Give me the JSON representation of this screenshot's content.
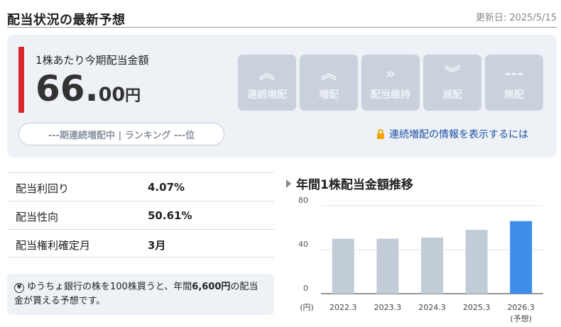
{
  "header": {
    "title": "配当状況の最新予想",
    "updated": "更新日: 2025/5/15"
  },
  "dividend": {
    "label": "1株あたり今期配当金額",
    "integer": "66.",
    "decimal": "00",
    "unit": "円",
    "rank_text": "---期連続増配中 | ランキング ---位"
  },
  "statuses": [
    {
      "label": "連続増配",
      "icon": "double-chevron-up-icon",
      "active": true
    },
    {
      "label": "増配",
      "icon": "double-chevron-up-icon",
      "active": false
    },
    {
      "label": "配当維持",
      "icon": "double-chevron-right-icon",
      "active": false
    },
    {
      "label": "減配",
      "icon": "double-chevron-down-icon",
      "active": false
    },
    {
      "label": "無配",
      "icon": "dash-icon",
      "active": false
    }
  ],
  "info_link": "連続増配の情報を表示するには",
  "metrics": [
    {
      "label": "配当利回り",
      "value": "4.07%"
    },
    {
      "label": "配当性向",
      "value": "50.61%"
    },
    {
      "label": "配当権利確定月",
      "value": "3月"
    }
  ],
  "note": {
    "pre": "ゆうちょ銀行の株を100株買うと、年間",
    "amount": "6,600円",
    "post": "の配当金が貰える予想です。"
  },
  "chart_title": "年間1株配当金額推移",
  "chart_data": {
    "type": "bar",
    "categories": [
      "2022.3",
      "2023.3",
      "2024.3",
      "2025.3",
      "2026.3"
    ],
    "category_notes": [
      "",
      "",
      "",
      "",
      "(予想)"
    ],
    "values": [
      50,
      50,
      51,
      58,
      66
    ],
    "ylim": [
      0,
      80
    ],
    "yticks": [
      0,
      40,
      80
    ],
    "yunit": "(円)",
    "colors": [
      "#c2ccd6",
      "#c2ccd6",
      "#c2ccd6",
      "#c2ccd6",
      "#3d8fea"
    ]
  }
}
